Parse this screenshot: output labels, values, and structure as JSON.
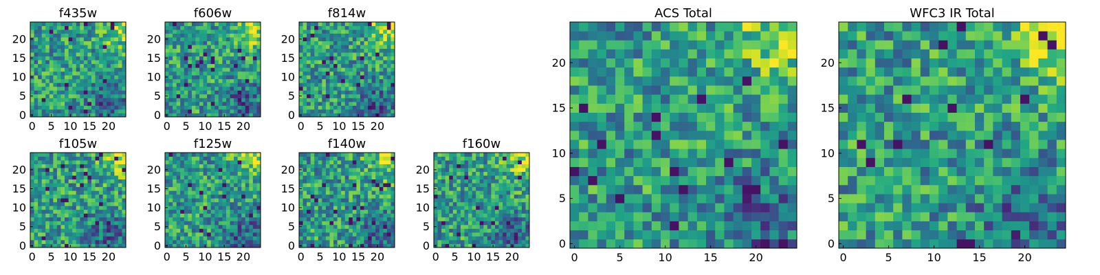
{
  "chart_data": [
    {
      "type": "heatmap",
      "title": "f435w",
      "grid_size": 25,
      "xticks": [
        0,
        5,
        10,
        15,
        20
      ],
      "yticks": [
        0,
        5,
        10,
        15,
        20
      ],
      "colormap": "viridis",
      "seed": 11
    },
    {
      "type": "heatmap",
      "title": "f606w",
      "grid_size": 25,
      "xticks": [
        0,
        5,
        10,
        15,
        20
      ],
      "yticks": [
        0,
        5,
        10,
        15,
        20
      ],
      "colormap": "viridis",
      "seed": 23
    },
    {
      "type": "heatmap",
      "title": "f814w",
      "grid_size": 25,
      "xticks": [
        0,
        5,
        10,
        15,
        20
      ],
      "yticks": [
        0,
        5,
        10,
        15,
        20
      ],
      "colormap": "viridis",
      "seed": 37
    },
    {
      "type": "heatmap",
      "title": "f105w",
      "grid_size": 25,
      "xticks": [
        0,
        5,
        10,
        15,
        20
      ],
      "yticks": [
        0,
        5,
        10,
        15,
        20
      ],
      "colormap": "viridis",
      "seed": 41
    },
    {
      "type": "heatmap",
      "title": "f125w",
      "grid_size": 25,
      "xticks": [
        0,
        5,
        10,
        15,
        20
      ],
      "yticks": [
        0,
        5,
        10,
        15,
        20
      ],
      "colormap": "viridis",
      "seed": 53
    },
    {
      "type": "heatmap",
      "title": "f140w",
      "grid_size": 25,
      "xticks": [
        0,
        5,
        10,
        15,
        20
      ],
      "yticks": [
        0,
        5,
        10,
        15,
        20
      ],
      "colormap": "viridis",
      "seed": 67
    },
    {
      "type": "heatmap",
      "title": "f160w",
      "grid_size": 25,
      "xticks": [
        0,
        5,
        10,
        15,
        20
      ],
      "yticks": [
        0,
        5,
        10,
        15,
        20
      ],
      "colormap": "viridis",
      "seed": 79
    },
    {
      "type": "heatmap",
      "title": "ACS Total",
      "grid_size": 25,
      "xticks": [
        0,
        5,
        10,
        15,
        20
      ],
      "yticks": [
        0,
        5,
        10,
        15,
        20
      ],
      "colormap": "viridis",
      "seed": 83
    },
    {
      "type": "heatmap",
      "title": "WFC3 IR Total",
      "grid_size": 25,
      "xticks": [
        0,
        5,
        10,
        15,
        20
      ],
      "yticks": [
        0,
        5,
        10,
        15,
        20
      ],
      "colormap": "viridis",
      "seed": 97
    }
  ]
}
